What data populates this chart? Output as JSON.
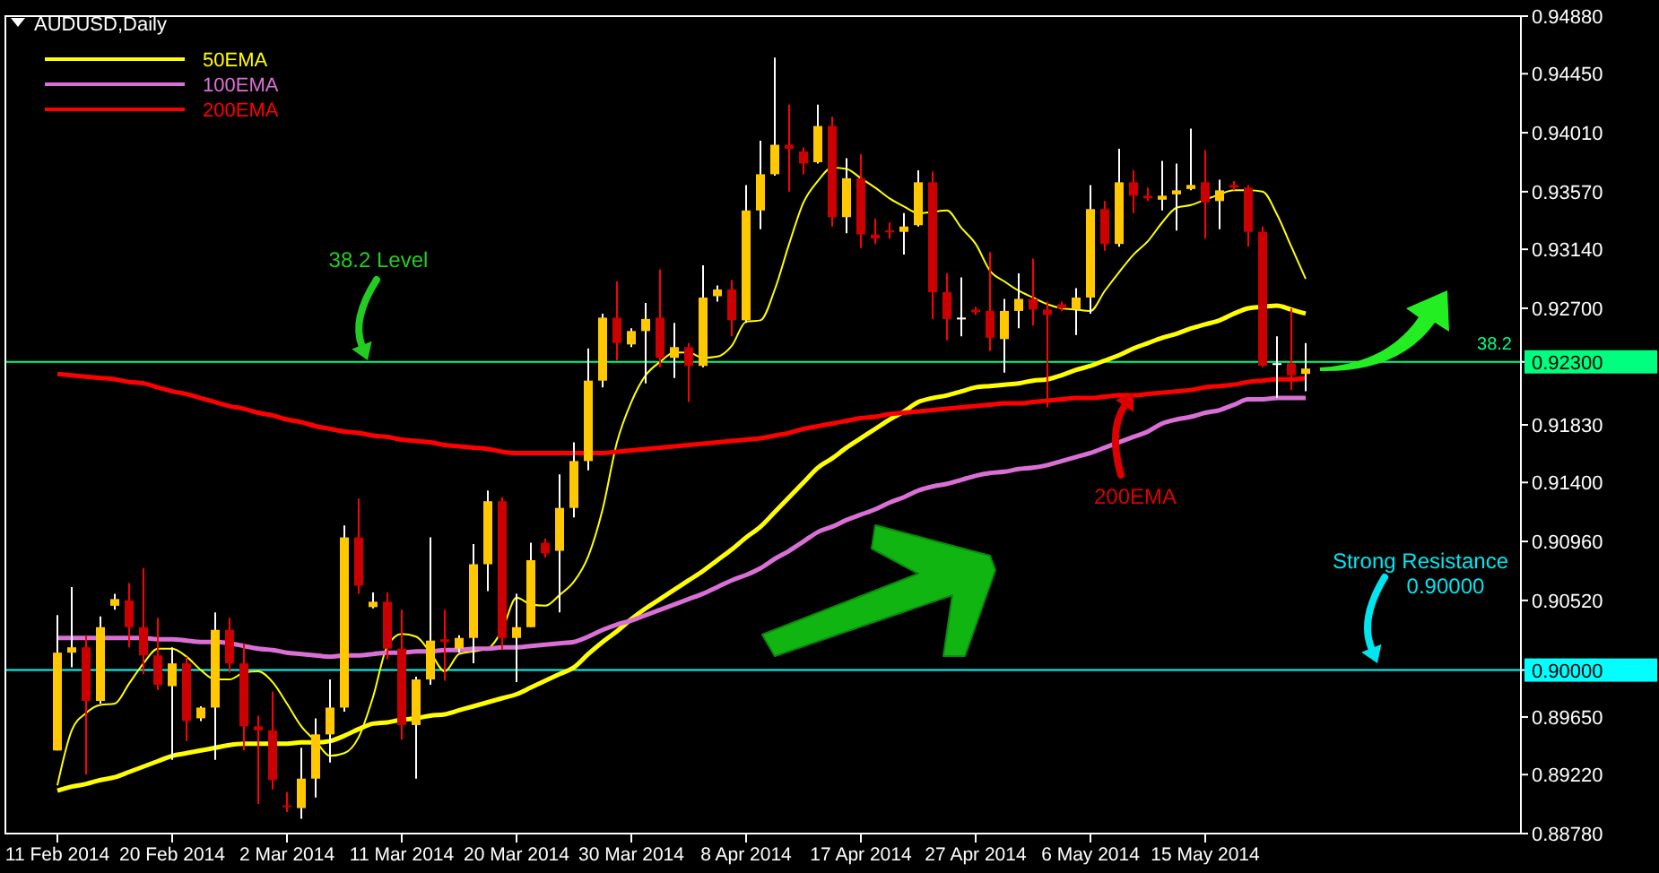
{
  "chart_data": {
    "type": "candlestick",
    "title": "AUDUSD,Daily",
    "legend": "top left",
    "categories": [
      "11 Feb 2014",
      null,
      null,
      null,
      null,
      null,
      null,
      null,
      "20 Feb 2014",
      null,
      null,
      null,
      null,
      null,
      null,
      null,
      "2 Mar 2014",
      null,
      null,
      null,
      null,
      null,
      null,
      null,
      "11 Mar 2014",
      null,
      null,
      null,
      null,
      null,
      null,
      null,
      "20 Mar 2014",
      null,
      null,
      null,
      null,
      null,
      null,
      null,
      "30 Mar 2014",
      null,
      null,
      null,
      null,
      null,
      null,
      null,
      "8 Apr 2014",
      null,
      null,
      null,
      null,
      null,
      null,
      null,
      "17 Apr 2014",
      null,
      null,
      null,
      null,
      null,
      null,
      null,
      "27 Apr 2014",
      null,
      null,
      null,
      null,
      null,
      null,
      null,
      "6 May 2014",
      null,
      null,
      null,
      null,
      null,
      null,
      null,
      "15 May 2014",
      null,
      null,
      null,
      null,
      null,
      null,
      null
    ],
    "ylim": [
      0.8878,
      0.9488
    ],
    "yticks": [
      {
        "value": 0.9488,
        "label": "0.94880"
      },
      {
        "value": 0.9445,
        "label": "0.94450"
      },
      {
        "value": 0.9401,
        "label": "0.94010"
      },
      {
        "value": 0.9357,
        "label": "0.93570"
      },
      {
        "value": 0.9314,
        "label": "0.93140"
      },
      {
        "value": 0.927,
        "label": "0.92700"
      },
      {
        "value": 0.923,
        "label": "0.92300"
      },
      {
        "value": 0.9183,
        "label": "0.91830"
      },
      {
        "value": 0.914,
        "label": "0.91400"
      },
      {
        "value": 0.9096,
        "label": "0.90960"
      },
      {
        "value": 0.9052,
        "label": "0.90520"
      },
      {
        "value": 0.9,
        "label": "0.90000"
      },
      {
        "value": 0.8965,
        "label": "0.89650"
      },
      {
        "value": 0.8922,
        "label": "0.89220"
      },
      {
        "value": 0.8878,
        "label": "0.88780"
      }
    ],
    "ohlc": [
      [
        0.894,
        0.9041,
        0.894,
        0.9013
      ],
      [
        0.9013,
        0.9062,
        0.9002,
        0.9017
      ],
      [
        0.9017,
        0.9026,
        0.8922,
        0.8977
      ],
      [
        0.8977,
        0.904,
        0.8975,
        0.9032
      ],
      [
        0.9048,
        0.9057,
        0.9045,
        0.9053
      ],
      [
        0.9052,
        0.9065,
        0.9017,
        0.9032
      ],
      [
        0.9032,
        0.9076,
        0.8997,
        0.9011
      ],
      [
        0.9011,
        0.9039,
        0.8985,
        0.8989
      ],
      [
        0.8988,
        0.9017,
        0.8933,
        0.9005
      ],
      [
        0.9005,
        0.901,
        0.8947,
        0.8962
      ],
      [
        0.8964,
        0.8973,
        0.8962,
        0.8972
      ],
      [
        0.8972,
        0.9043,
        0.8933,
        0.903
      ],
      [
        0.903,
        0.9039,
        0.8998,
        0.9005
      ],
      [
        0.9005,
        0.902,
        0.894,
        0.8958
      ],
      [
        0.8958,
        0.8966,
        0.89,
        0.8955
      ],
      [
        0.8955,
        0.8984,
        0.8911,
        0.8918
      ],
      [
        0.8899,
        0.8909,
        0.8894,
        0.8898
      ],
      [
        0.8897,
        0.8942,
        0.8889,
        0.8919
      ],
      [
        0.8919,
        0.8964,
        0.8905,
        0.8952
      ],
      [
        0.8952,
        0.8993,
        0.8931,
        0.8972
      ],
      [
        0.8972,
        0.9108,
        0.8969,
        0.9099
      ],
      [
        0.9099,
        0.9128,
        0.9057,
        0.9063
      ],
      [
        0.9047,
        0.9058,
        0.9046,
        0.9051
      ],
      [
        0.9051,
        0.9058,
        0.9008,
        0.9016
      ],
      [
        0.9016,
        0.9045,
        0.8948,
        0.8959
      ],
      [
        0.8959,
        0.8995,
        0.8919,
        0.8993
      ],
      [
        0.8993,
        0.9099,
        0.8989,
        0.9022
      ],
      [
        0.9023,
        0.9045,
        0.8992,
        0.9021
      ],
      [
        0.9016,
        0.9026,
        0.9013,
        0.9024
      ],
      [
        0.9024,
        0.9094,
        0.9005,
        0.9079
      ],
      [
        0.9079,
        0.9134,
        0.9059,
        0.9126
      ],
      [
        0.9126,
        0.9129,
        0.9015,
        0.9024
      ],
      [
        0.9024,
        0.9057,
        0.8991,
        0.9032
      ],
      [
        0.9032,
        0.9095,
        0.9032,
        0.9082
      ],
      [
        0.9095,
        0.9098,
        0.9084,
        0.9087
      ],
      [
        0.9089,
        0.9146,
        0.9043,
        0.9121
      ],
      [
        0.9121,
        0.917,
        0.9114,
        0.9156
      ],
      [
        0.9156,
        0.924,
        0.9149,
        0.9216
      ],
      [
        0.9216,
        0.9266,
        0.9211,
        0.9263
      ],
      [
        0.9263,
        0.929,
        0.9231,
        0.9244
      ],
      [
        0.9243,
        0.9255,
        0.9241,
        0.9253
      ],
      [
        0.9253,
        0.9274,
        0.9214,
        0.9262
      ],
      [
        0.9263,
        0.9299,
        0.9226,
        0.9233
      ],
      [
        0.9233,
        0.9259,
        0.9218,
        0.9241
      ],
      [
        0.9241,
        0.9244,
        0.92,
        0.9227
      ],
      [
        0.9227,
        0.9302,
        0.9226,
        0.9278
      ],
      [
        0.9279,
        0.9287,
        0.9275,
        0.9284
      ],
      [
        0.9284,
        0.9291,
        0.9249,
        0.9261
      ],
      [
        0.9261,
        0.9362,
        0.9259,
        0.9343
      ],
      [
        0.9343,
        0.9395,
        0.9329,
        0.937
      ],
      [
        0.937,
        0.9457,
        0.9369,
        0.9392
      ],
      [
        0.9392,
        0.9422,
        0.9357,
        0.9389
      ],
      [
        0.9387,
        0.939,
        0.937,
        0.9378
      ],
      [
        0.9379,
        0.9422,
        0.9378,
        0.9406
      ],
      [
        0.9406,
        0.9413,
        0.9331,
        0.9338
      ],
      [
        0.9338,
        0.9382,
        0.9326,
        0.9367
      ],
      [
        0.9367,
        0.9385,
        0.9315,
        0.9325
      ],
      [
        0.9325,
        0.9337,
        0.9318,
        0.9322
      ],
      [
        0.9328,
        0.9334,
        0.9322,
        0.9327
      ],
      [
        0.9327,
        0.9341,
        0.931,
        0.9331
      ],
      [
        0.9332,
        0.9373,
        0.9331,
        0.9364
      ],
      [
        0.9364,
        0.9372,
        0.9262,
        0.9282
      ],
      [
        0.9282,
        0.9296,
        0.9246,
        0.9262
      ],
      [
        0.9263,
        0.9293,
        0.9249,
        0.9263
      ],
      [
        0.9269,
        0.9271,
        0.9265,
        0.9267
      ],
      [
        0.9268,
        0.9312,
        0.9238,
        0.9248
      ],
      [
        0.9247,
        0.9277,
        0.9222,
        0.9268
      ],
      [
        0.9268,
        0.9296,
        0.9255,
        0.9277
      ],
      [
        0.9277,
        0.9307,
        0.9257,
        0.9269
      ],
      [
        0.9269,
        0.9275,
        0.9196,
        0.9265
      ],
      [
        0.9273,
        0.9275,
        0.9268,
        0.927
      ],
      [
        0.9269,
        0.9285,
        0.925,
        0.9278
      ],
      [
        0.9278,
        0.9362,
        0.9266,
        0.9344
      ],
      [
        0.9344,
        0.935,
        0.9313,
        0.9318
      ],
      [
        0.9318,
        0.9389,
        0.9316,
        0.9364
      ],
      [
        0.9364,
        0.9373,
        0.9341,
        0.9354
      ],
      [
        0.9354,
        0.936,
        0.935,
        0.9352
      ],
      [
        0.9351,
        0.938,
        0.9343,
        0.9354
      ],
      [
        0.9355,
        0.9378,
        0.9328,
        0.9358
      ],
      [
        0.9359,
        0.9404,
        0.9358,
        0.9362
      ],
      [
        0.9364,
        0.9388,
        0.9322,
        0.9349
      ],
      [
        0.935,
        0.9366,
        0.9329,
        0.9358
      ],
      [
        0.9362,
        0.9365,
        0.9358,
        0.936
      ],
      [
        0.936,
        0.9362,
        0.9316,
        0.9327
      ],
      [
        0.9327,
        0.9331,
        0.9226,
        0.9227
      ],
      [
        0.9229,
        0.9249,
        0.9203,
        0.9229
      ],
      [
        0.9229,
        0.927,
        0.9209,
        0.922
      ],
      [
        0.9221,
        0.9244,
        0.9208,
        0.9225
      ]
    ],
    "series": [
      {
        "type": "line",
        "color": "#ffff00",
        "values": [
          0.8914,
          0.8955,
          0.8968,
          0.8974,
          0.8975,
          0.899,
          0.9005,
          0.9016,
          0.9016,
          0.901,
          0.9,
          0.8993,
          0.8993,
          0.8998,
          0.8999,
          0.8991,
          0.8975,
          0.8958,
          0.8947,
          0.8936,
          0.8938,
          0.895,
          0.898,
          0.9018,
          0.9027,
          0.9025,
          0.9013,
          0.8999,
          0.9012,
          0.9014,
          0.9016,
          0.903,
          0.9054,
          0.9049,
          0.9048,
          0.9056,
          0.9066,
          0.9085,
          0.912,
          0.917,
          0.92,
          0.922,
          0.923,
          0.9237,
          0.9237,
          0.9233,
          0.9234,
          0.9242,
          0.926,
          0.9261,
          0.9284,
          0.9318,
          0.9349,
          0.9365,
          0.9375,
          0.9374,
          0.9367,
          0.936,
          0.9352,
          0.9346,
          0.9341,
          0.9342,
          0.9343,
          0.933,
          0.9318,
          0.9298,
          0.929,
          0.9283,
          0.9278,
          0.9273,
          0.927,
          0.9269,
          0.9268,
          0.9283,
          0.9297,
          0.931,
          0.932,
          0.9334,
          0.9345,
          0.9347,
          0.9351,
          0.9355,
          0.9358,
          0.9358,
          0.9357,
          0.934,
          0.9316,
          0.9292
        ]
      },
      {
        "type": "line",
        "name": "50EMA",
        "color": "#ffff00",
        "values": [
          0.891,
          0.8913,
          0.8915,
          0.8918,
          0.892,
          0.8924,
          0.8928,
          0.8932,
          0.8936,
          0.8938,
          0.894,
          0.8942,
          0.8944,
          0.8945,
          0.8945,
          0.8945,
          0.8945,
          0.8946,
          0.8946,
          0.8947,
          0.8951,
          0.8956,
          0.896,
          0.8961,
          0.8963,
          0.8964,
          0.8966,
          0.8967,
          0.897,
          0.8973,
          0.8976,
          0.8979,
          0.8982,
          0.8987,
          0.8992,
          0.8997,
          0.9002,
          0.9012,
          0.9021,
          0.9029,
          0.9038,
          0.9046,
          0.9053,
          0.906,
          0.9067,
          0.9074,
          0.9082,
          0.909,
          0.9099,
          0.9107,
          0.9118,
          0.9129,
          0.914,
          0.9151,
          0.9158,
          0.9166,
          0.9173,
          0.918,
          0.9187,
          0.9193,
          0.92,
          0.9203,
          0.9205,
          0.9208,
          0.9211,
          0.9212,
          0.9213,
          0.9214,
          0.9216,
          0.9217,
          0.922,
          0.9224,
          0.9227,
          0.9231,
          0.9235,
          0.924,
          0.9244,
          0.9248,
          0.9251,
          0.9255,
          0.9258,
          0.9261,
          0.9266,
          0.927,
          0.9271,
          0.9272,
          0.9269,
          0.9266
        ]
      },
      {
        "type": "line",
        "name": "100EMA",
        "color": "#da70d6",
        "values": [
          0.9024,
          0.9024,
          0.9024,
          0.9024,
          0.9024,
          0.9024,
          0.9024,
          0.9023,
          0.9023,
          0.9022,
          0.9021,
          0.9021,
          0.902,
          0.9018,
          0.9016,
          0.9015,
          0.9013,
          0.9012,
          0.9011,
          0.901,
          0.9011,
          0.9011,
          0.9012,
          0.9013,
          0.9013,
          0.9014,
          0.9014,
          0.9015,
          0.9015,
          0.9016,
          0.9016,
          0.9017,
          0.9017,
          0.9018,
          0.9019,
          0.902,
          0.9021,
          0.9025,
          0.903,
          0.9034,
          0.9037,
          0.9041,
          0.9045,
          0.9049,
          0.9053,
          0.9057,
          0.9062,
          0.9067,
          0.9071,
          0.9076,
          0.9083,
          0.9089,
          0.9096,
          0.9103,
          0.9107,
          0.9112,
          0.9116,
          0.912,
          0.9125,
          0.9129,
          0.9134,
          0.9137,
          0.9139,
          0.9142,
          0.9145,
          0.9147,
          0.9148,
          0.915,
          0.9151,
          0.9153,
          0.9156,
          0.9159,
          0.9162,
          0.9166,
          0.917,
          0.9174,
          0.9178,
          0.9184,
          0.9187,
          0.9189,
          0.9192,
          0.9194,
          0.9198,
          0.9202,
          0.9202,
          0.9203,
          0.9203,
          0.9203
        ]
      },
      {
        "type": "line",
        "name": "200EMA",
        "color": "#ff0000",
        "values": [
          0.9221,
          0.922,
          0.9219,
          0.9218,
          0.9217,
          0.9215,
          0.9214,
          0.9211,
          0.9208,
          0.9206,
          0.9203,
          0.92,
          0.9197,
          0.9195,
          0.9192,
          0.919,
          0.9187,
          0.9185,
          0.9182,
          0.918,
          0.9178,
          0.9177,
          0.9175,
          0.9174,
          0.9172,
          0.9171,
          0.917,
          0.9168,
          0.9167,
          0.9166,
          0.9165,
          0.9163,
          0.9162,
          0.9162,
          0.9162,
          0.9162,
          0.9162,
          0.9162,
          0.9162,
          0.9163,
          0.9164,
          0.9165,
          0.9166,
          0.9167,
          0.9168,
          0.9169,
          0.917,
          0.9171,
          0.9172,
          0.9173,
          0.9175,
          0.9177,
          0.918,
          0.9182,
          0.9184,
          0.9186,
          0.9188,
          0.9189,
          0.9191,
          0.9192,
          0.9193,
          0.9194,
          0.9195,
          0.9196,
          0.9197,
          0.9198,
          0.9199,
          0.9199,
          0.92,
          0.9201,
          0.9202,
          0.9203,
          0.9203,
          0.9204,
          0.9205,
          0.9205,
          0.9206,
          0.9207,
          0.9208,
          0.9209,
          0.9211,
          0.9212,
          0.9213,
          0.9215,
          0.9216,
          0.9217,
          0.9217,
          0.9218
        ]
      }
    ],
    "ref_lines": [
      {
        "axis": "y",
        "value": 0.923,
        "color": "#00ff7f"
      },
      {
        "axis": "y",
        "value": 0.9,
        "color": "#00ffff"
      }
    ],
    "annotations": [
      "38.2 Level",
      "200EMA",
      "Strong Resistance\n0.90000",
      "38.2"
    ]
  }
}
